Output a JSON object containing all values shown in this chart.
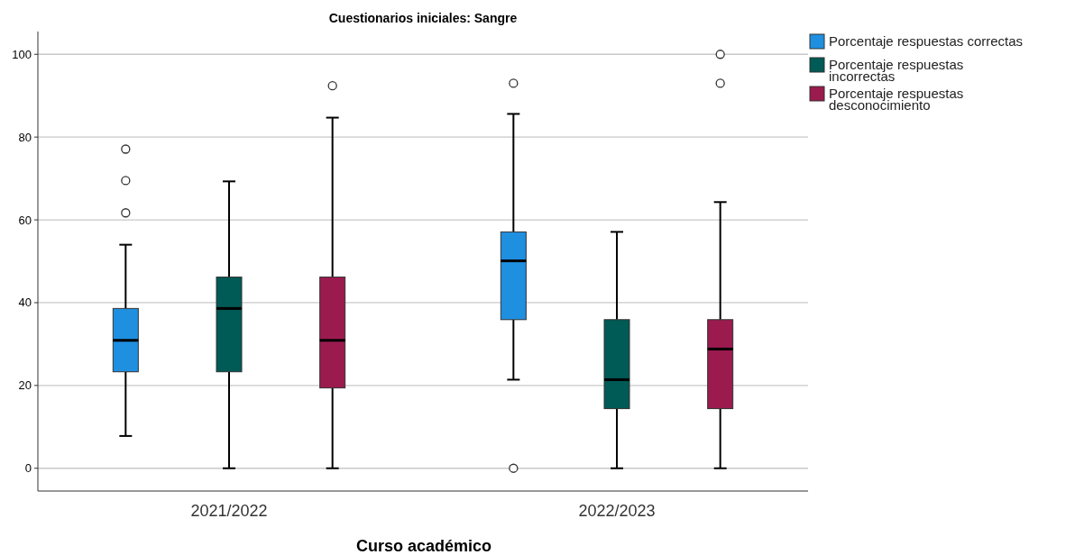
{
  "chart_data": {
    "type": "box",
    "title": "Cuestionarios iniciales: Sangre",
    "xlabel": "Curso académico",
    "categories": [
      "2021/2022",
      "2022/2023"
    ],
    "ylim": [
      -5.5,
      105.5
    ],
    "yticks": [
      0,
      20,
      40,
      60,
      80,
      100
    ],
    "grid": "y",
    "legend": "top right",
    "series": [
      {
        "name": "Porcentaje respuestas correctas",
        "color": "#1f8fe0",
        "boxes": [
          {
            "low": 7.8,
            "q1": 23.3,
            "median": 30.9,
            "q3": 38.6,
            "high": 54.0,
            "outliers": [
              61.7,
              69.5,
              77.1
            ]
          },
          {
            "low": 21.4,
            "q1": 35.9,
            "median": 50.1,
            "q3": 57.1,
            "high": 85.6,
            "outliers": [
              0,
              93.0
            ]
          }
        ]
      },
      {
        "name": "Porcentaje respuestas incorrectas",
        "color": "#005a55",
        "boxes": [
          {
            "low": 0,
            "q1": 23.3,
            "median": 38.6,
            "q3": 46.2,
            "high": 69.3
          },
          {
            "low": 0,
            "q1": 14.4,
            "median": 21.4,
            "q3": 35.9,
            "high": 57.1
          }
        ]
      },
      {
        "name": "Porcentaje respuestas desconocimiento",
        "color": "#9b1b4f",
        "boxes": [
          {
            "low": 0,
            "q1": 19.4,
            "median": 30.9,
            "q3": 46.2,
            "high": 84.7,
            "outliers": [
              92.4
            ]
          },
          {
            "low": 0,
            "q1": 14.4,
            "median": 28.8,
            "q3": 35.9,
            "high": 64.3,
            "outliers": [
              93.0,
              100
            ]
          }
        ]
      }
    ]
  }
}
